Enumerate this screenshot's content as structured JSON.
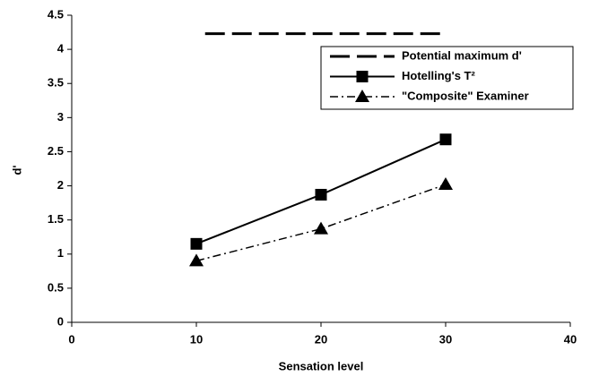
{
  "chart_data": {
    "type": "line",
    "x_label": "Sensation level",
    "y_label": "d'",
    "xlim": [
      0,
      40
    ],
    "xticks": [
      0,
      10,
      20,
      30,
      40
    ],
    "ylim": [
      0,
      4.5
    ],
    "yticks": [
      0,
      0.5,
      1,
      1.5,
      2,
      2.5,
      3,
      3.5,
      4,
      4.5
    ],
    "grid": false,
    "legend": "upper right",
    "series": [
      {
        "name": "Potential maximum d'",
        "color": "#000000",
        "dash": "long-dash",
        "marker": "none",
        "x": [
          10.7,
          29.6
        ],
        "values": [
          4.23,
          4.23
        ]
      },
      {
        "name": "Hotelling's T²",
        "color": "#000000",
        "dash": "solid",
        "marker": "square",
        "x": [
          10,
          20,
          30
        ],
        "values": [
          1.15,
          1.87,
          2.68
        ]
      },
      {
        "name": "\"Composite\" Examiner",
        "color": "#000000",
        "dash": "dash-dot",
        "marker": "triangle",
        "x": [
          10,
          20,
          30
        ],
        "values": [
          0.9,
          1.37,
          2.02
        ]
      }
    ]
  }
}
